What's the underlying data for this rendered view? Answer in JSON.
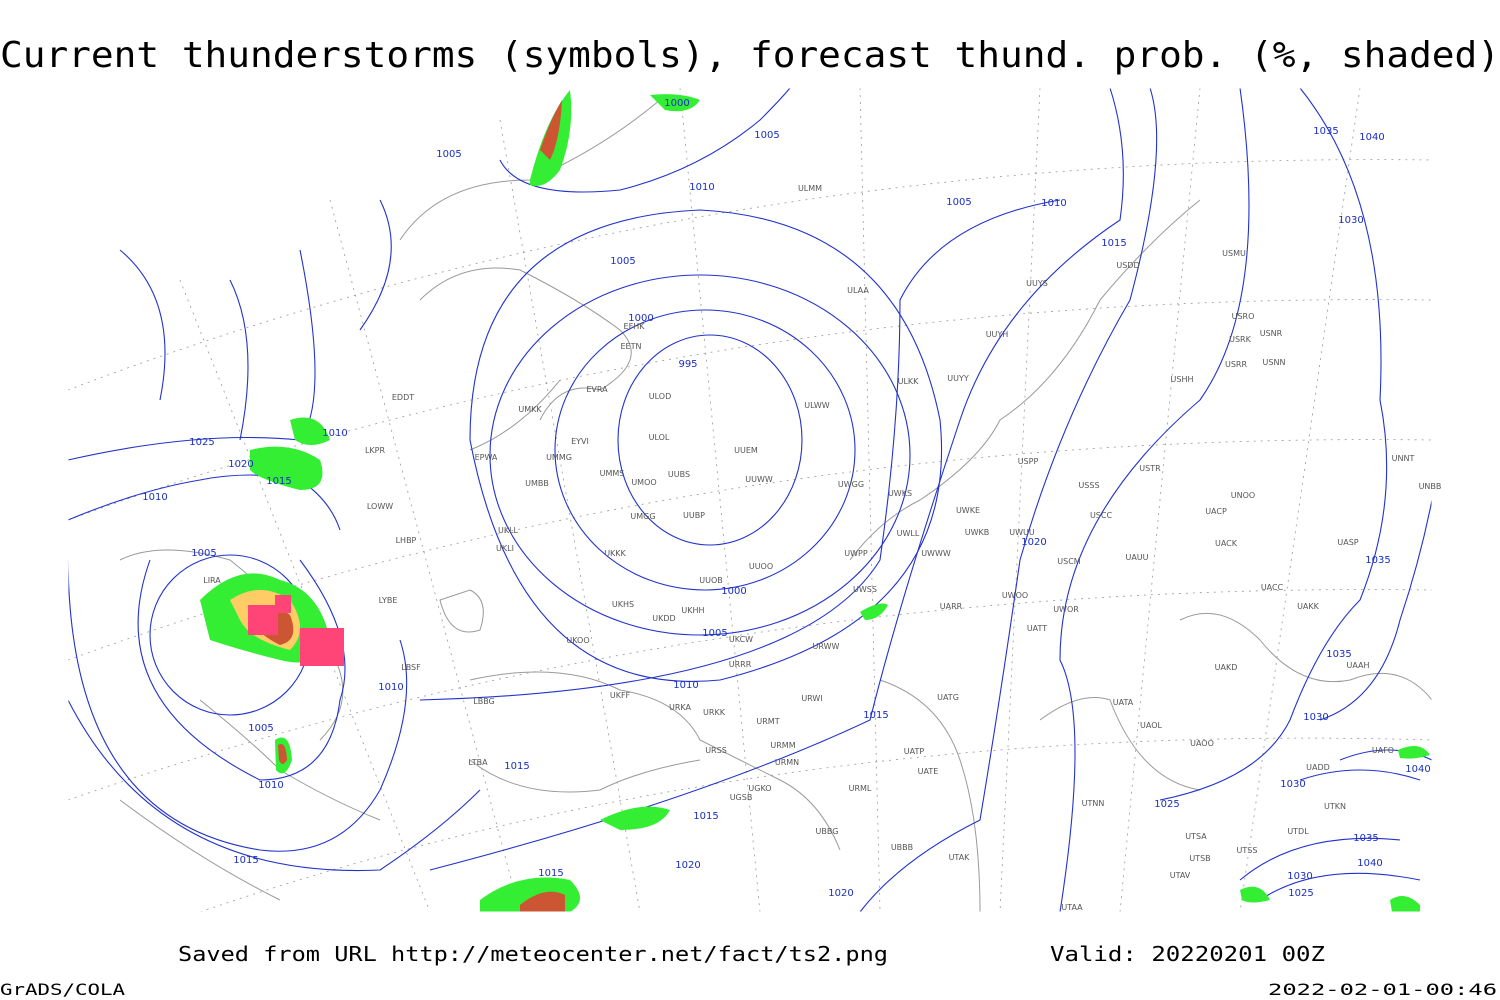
{
  "title": "Current thunderstorms (symbols), forecast thund. prob. (%, shaded)",
  "footer": {
    "source": "Saved from URL http://meteocenter.net/fact/ts2.png",
    "valid": "Valid: 20220201 00Z",
    "software": "GrADS/COLA",
    "timestamp": "2022-02-01-00:46"
  },
  "isobar_labels": [
    1000,
    1005,
    1005,
    1010,
    1005,
    1000,
    995,
    1000,
    1005,
    1010,
    1015,
    1015,
    1020,
    1020,
    1015,
    1025,
    1030,
    1035,
    1035,
    1030,
    1035,
    1040,
    1015,
    1010,
    1005,
    1020,
    1010,
    1025,
    1020,
    1015,
    1010,
    1005,
    1005,
    1010,
    1015,
    1010,
    1015,
    1025,
    1030,
    1040,
    1035,
    1030,
    1040
  ],
  "stations": [
    "ULMM",
    "ULAA",
    "UUYS",
    "UUYH",
    "ULKK",
    "UUYY",
    "ULWW",
    "ULOL",
    "UUEM",
    "UUWW",
    "UWGG",
    "UWKS",
    "UWKE",
    "UWKB",
    "UWUU",
    "USPP",
    "USSS",
    "USTR",
    "USCC",
    "UNOO",
    "UACP",
    "UACK",
    "UASP",
    "UNNT",
    "UNBB",
    "USMU",
    "USRO",
    "USRK",
    "USNR",
    "USRR",
    "USNN",
    "USHH",
    "USDD",
    "ULOD",
    "EFHK",
    "EETN",
    "EVRA",
    "EYVI",
    "UMKK",
    "EPWA",
    "UMMG",
    "UMBB",
    "UMMS",
    "UMOO",
    "UUBS",
    "UMGG",
    "UUBP",
    "UKLL",
    "UKLI",
    "UKKK",
    "UUOO",
    "UWPP",
    "UWWW",
    "UWLL",
    "UUOB",
    "UWSS",
    "UKHH",
    "UKHS",
    "UKDD",
    "UKOO",
    "UKCW",
    "URRR",
    "URWW",
    "URWI",
    "UKFF",
    "URKK",
    "URKA",
    "URMT",
    "URMM",
    "URMN",
    "URSS",
    "UGKO",
    "UGSB",
    "UBBB",
    "UBBG",
    "URML",
    "UATG",
    "UATT",
    "UWOR",
    "UWOO",
    "USCM",
    "UAUU",
    "UARR",
    "UAKD",
    "UAKK",
    "UACC",
    "UAAH",
    "UATA",
    "UAOL",
    "UAOO",
    "UATP",
    "UATE",
    "UTAK",
    "UTNN",
    "UTSA",
    "UTSB",
    "UTSS",
    "UTAV",
    "UTDL",
    "UTKN",
    "UTAA",
    "UAFO",
    "UADD",
    "LIRA",
    "LKPR",
    "EDDT",
    "LOWW",
    "LHBP",
    "LYBE",
    "LBSF",
    "LBBG",
    "LTBA"
  ]
}
